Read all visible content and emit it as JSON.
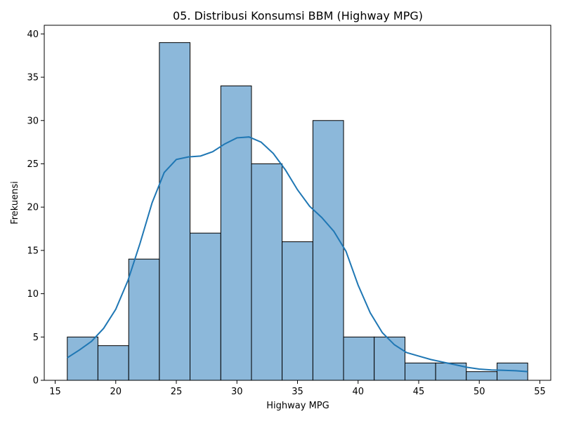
{
  "chart_data": {
    "type": "bar",
    "title": "05. Distribusi Konsumsi BBM (Highway MPG)",
    "xlabel": "Highway MPG",
    "ylabel": "Frekuensi",
    "xlim": [
      14.1,
      55.9
    ],
    "ylim": [
      0,
      41
    ],
    "x_ticks": [
      15,
      20,
      25,
      30,
      35,
      40,
      45,
      50,
      55
    ],
    "y_ticks": [
      0,
      5,
      10,
      15,
      20,
      25,
      30,
      35,
      40
    ],
    "bins": [
      {
        "start": 16.0,
        "end": 18.53,
        "count": 5
      },
      {
        "start": 18.53,
        "end": 21.07,
        "count": 4
      },
      {
        "start": 21.07,
        "end": 23.6,
        "count": 14
      },
      {
        "start": 23.6,
        "end": 26.13,
        "count": 39
      },
      {
        "start": 26.13,
        "end": 28.67,
        "count": 17
      },
      {
        "start": 28.67,
        "end": 31.2,
        "count": 34
      },
      {
        "start": 31.2,
        "end": 33.73,
        "count": 25
      },
      {
        "start": 33.73,
        "end": 36.27,
        "count": 16
      },
      {
        "start": 36.27,
        "end": 38.8,
        "count": 30
      },
      {
        "start": 38.8,
        "end": 41.33,
        "count": 5
      },
      {
        "start": 41.33,
        "end": 43.87,
        "count": 5
      },
      {
        "start": 43.87,
        "end": 46.4,
        "count": 2
      },
      {
        "start": 46.4,
        "end": 48.93,
        "count": 2
      },
      {
        "start": 48.93,
        "end": 51.47,
        "count": 1
      },
      {
        "start": 51.47,
        "end": 54.0,
        "count": 2
      }
    ],
    "kde": {
      "x": [
        16,
        17,
        18,
        19,
        20,
        21,
        22,
        23,
        24,
        25,
        26,
        27,
        28,
        29,
        30,
        31,
        32,
        33,
        34,
        35,
        36,
        37,
        38,
        39,
        40,
        41,
        42,
        43,
        44,
        45,
        46,
        47,
        48,
        49,
        50,
        51,
        52,
        53,
        54
      ],
      "y": [
        2.6,
        3.5,
        4.5,
        6.0,
        8.2,
        11.5,
        15.8,
        20.5,
        24.0,
        25.5,
        25.8,
        25.9,
        26.4,
        27.3,
        28.0,
        28.1,
        27.5,
        26.2,
        24.3,
        22.0,
        20.1,
        18.8,
        17.2,
        14.9,
        11.0,
        7.8,
        5.5,
        4.1,
        3.2,
        2.8,
        2.4,
        2.1,
        1.8,
        1.5,
        1.3,
        1.2,
        1.15,
        1.1,
        1.0
      ]
    },
    "bar_fill": "#8cb8da",
    "bar_edge": "#000000",
    "kde_color": "#1f77b4",
    "grid": false
  }
}
